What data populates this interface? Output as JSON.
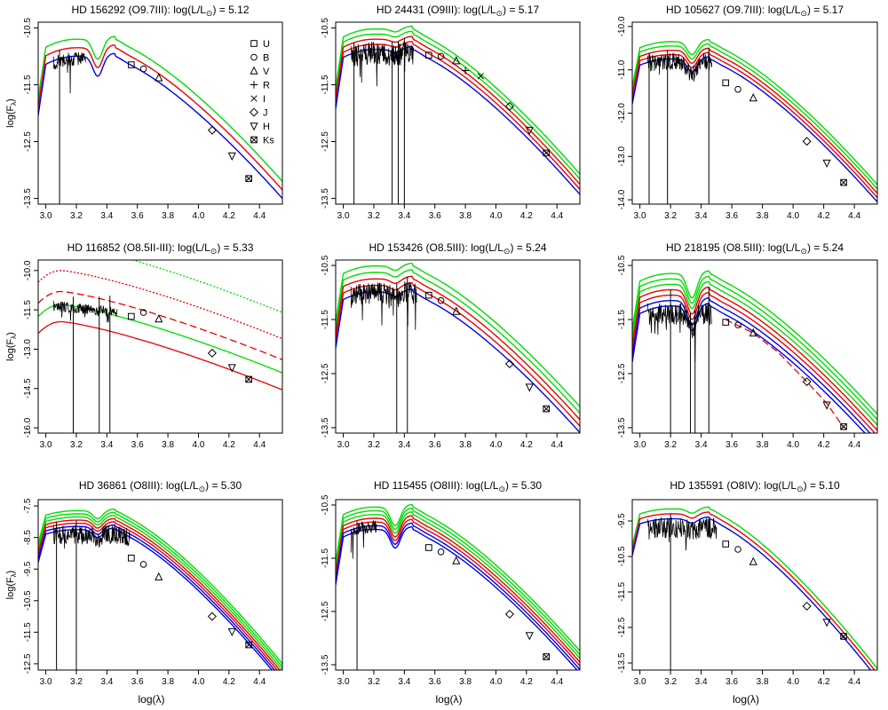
{
  "figure": {
    "x_axis_label": "log(λ)",
    "y_axis_label": "log(F",
    "y_axis_label_sub": "λ",
    "y_axis_label_close": ")",
    "legend": [
      "U",
      "B",
      "V",
      "R",
      "I",
      "J",
      "H",
      "Ks"
    ],
    "colors": {
      "hot": "#00dd00",
      "mid": "#ee0000",
      "cool": "#0000ee",
      "spectrum": "#000000",
      "frame": "#000000"
    }
  },
  "chart_data": [
    {
      "type": "line",
      "star": "HD 156292",
      "spectral_type": "(O9.7III)",
      "lum_text": "log(L/L",
      "lum_value": "5.12",
      "title": "HD 156292 (O9.7III): log(L/L☉) = 5.12",
      "xlim": [
        2.95,
        4.55
      ],
      "ylim": [
        -13.6,
        -10.4
      ],
      "xticks": [
        "3.0",
        "3.2",
        "3.4",
        "3.6",
        "3.8",
        "4.0",
        "4.2",
        "4.4"
      ],
      "yticks": [
        "-10.5",
        "-11.5",
        "-12.5",
        "-13.5"
      ],
      "model": {
        "peak": -10.85,
        "sep": 0.15,
        "bump": 0.35,
        "nlines": 3,
        "sed_end": -13.3
      },
      "spectrum": {
        "x": [
          3.05,
          3.26
        ],
        "level": -10.9,
        "noise": 0.12,
        "deep": [
          3.09
        ]
      },
      "photometry": [
        {
          "band": "U",
          "x": 3.56,
          "y": -11.15
        },
        {
          "band": "B",
          "x": 3.64,
          "y": -11.22
        },
        {
          "band": "V",
          "x": 3.74,
          "y": -11.38
        },
        {
          "band": "J",
          "x": 4.09,
          "y": -12.3
        },
        {
          "band": "H",
          "x": 4.22,
          "y": -12.75
        },
        {
          "band": "Ks",
          "x": 4.33,
          "y": -13.15
        }
      ],
      "show_legend": true,
      "ylabel": true,
      "xlabel": false
    },
    {
      "type": "line",
      "star": "HD 24431",
      "spectral_type": "(O9III)",
      "lum_text": "log(L/L",
      "lum_value": "5.17",
      "title": "HD 24431 (O9III): log(L/L☉) = 5.17",
      "xlim": [
        2.95,
        4.55
      ],
      "ylim": [
        -13.6,
        -10.4
      ],
      "xticks": [
        "3.0",
        "3.2",
        "3.4",
        "3.6",
        "3.8",
        "4.0",
        "4.2",
        "4.4"
      ],
      "yticks": [
        "-10.5",
        "-11.5",
        "-12.5",
        "-13.5"
      ],
      "model": {
        "peak": -10.7,
        "sep": 0.09,
        "bump": 0.05,
        "nlines": 5,
        "sed_end": -13.2
      },
      "spectrum": {
        "x": [
          3.05,
          3.46
        ],
        "level": -10.85,
        "noise": 0.2,
        "deep": [
          3.07,
          3.32,
          3.36,
          3.4
        ]
      },
      "photometry": [
        {
          "band": "U",
          "x": 3.56,
          "y": -10.98
        },
        {
          "band": "B",
          "x": 3.64,
          "y": -11.0
        },
        {
          "band": "V",
          "x": 3.74,
          "y": -11.08
        },
        {
          "band": "R",
          "x": 3.8,
          "y": -11.25
        },
        {
          "band": "I",
          "x": 3.9,
          "y": -11.35
        },
        {
          "band": "J",
          "x": 4.09,
          "y": -11.88
        },
        {
          "band": "H",
          "x": 4.22,
          "y": -12.3
        },
        {
          "band": "Ks",
          "x": 4.33,
          "y": -12.7
        }
      ],
      "show_legend": false,
      "ylabel": false,
      "xlabel": false
    },
    {
      "type": "line",
      "star": "HD 105627",
      "spectral_type": "(O9.7III)",
      "lum_text": "log(L/L",
      "lum_value": "5.17",
      "title": "HD 105627 (O9.7III): log(L/L☉) = 5.17",
      "xlim": [
        2.95,
        4.55
      ],
      "ylim": [
        -14.1,
        -9.9
      ],
      "xticks": [
        "3.0",
        "3.2",
        "3.4",
        "3.6",
        "3.8",
        "4.0",
        "4.2",
        "4.4"
      ],
      "yticks": [
        "-10.0",
        "-11.0",
        "-12.0",
        "-13.0",
        "-14.0"
      ],
      "model": {
        "peak": -10.55,
        "sep": 0.1,
        "bump": 0.3,
        "nlines": 5,
        "sed_end": -13.8
      },
      "spectrum": {
        "x": [
          3.05,
          3.47
        ],
        "level": -10.8,
        "noise": 0.2,
        "deep": [
          3.06,
          3.18,
          3.45
        ]
      },
      "photometry": [
        {
          "band": "U",
          "x": 3.56,
          "y": -11.3
        },
        {
          "band": "B",
          "x": 3.64,
          "y": -11.45
        },
        {
          "band": "V",
          "x": 3.74,
          "y": -11.65
        },
        {
          "band": "J",
          "x": 4.09,
          "y": -12.65
        },
        {
          "band": "H",
          "x": 4.22,
          "y": -13.15
        },
        {
          "band": "Ks",
          "x": 4.33,
          "y": -13.6
        }
      ],
      "show_legend": false,
      "ylabel": false,
      "xlabel": false
    },
    {
      "type": "line",
      "star": "HD 116852",
      "spectral_type": "(O8.5II-III)",
      "lum_text": "log(L/L",
      "lum_value": "5.33",
      "title": "HD 116852 (O8.5II-III): log(L/L☉) = 5.33",
      "xlim": [
        2.95,
        4.55
      ],
      "ylim": [
        -16.2,
        -9.6
      ],
      "xticks": [
        "3.0",
        "3.2",
        "3.4",
        "3.6",
        "3.8",
        "4.0",
        "4.2",
        "4.4"
      ],
      "yticks": [
        "-10.0",
        "-11.5",
        "-13.0",
        "-14.5",
        "-16.0"
      ],
      "model": {
        "custom": true
      },
      "spectrum": {
        "x": [
          3.05,
          3.47
        ],
        "level": -11.15,
        "noise": 0.2,
        "deep": [
          3.18,
          3.35,
          3.42
        ]
      },
      "photometry": [
        {
          "band": "U",
          "x": 3.56,
          "y": -11.75
        },
        {
          "band": "B",
          "x": 3.64,
          "y": -11.6
        },
        {
          "band": "V",
          "x": 3.74,
          "y": -11.85
        },
        {
          "band": "J",
          "x": 4.09,
          "y": -13.15
        },
        {
          "band": "H",
          "x": 4.22,
          "y": -13.7
        },
        {
          "band": "Ks",
          "x": 4.33,
          "y": -14.15
        }
      ],
      "show_legend": false,
      "ylabel": true,
      "xlabel": false
    },
    {
      "type": "line",
      "star": "HD 153426",
      "spectral_type": "(O8.5III)",
      "lum_text": "log(L/L",
      "lum_value": "5.24",
      "title": "HD 153426 (O8.5III): log(L/L☉) = 5.24",
      "xlim": [
        2.95,
        4.55
      ],
      "ylim": [
        -13.6,
        -10.4
      ],
      "xticks": [
        "3.0",
        "3.2",
        "3.4",
        "3.6",
        "3.8",
        "4.0",
        "4.2",
        "4.4"
      ],
      "yticks": [
        "-10.5",
        "-11.5",
        "-12.5",
        "-13.5"
      ],
      "model": {
        "peak": -10.75,
        "sep": 0.12,
        "bump": 0.08,
        "nlines": 5,
        "sed_end": -13.3
      },
      "spectrum": {
        "x": [
          3.05,
          3.48
        ],
        "level": -10.95,
        "noise": 0.2,
        "deep": [
          3.35,
          3.42
        ]
      },
      "photometry": [
        {
          "band": "U",
          "x": 3.56,
          "y": -11.05
        },
        {
          "band": "B",
          "x": 3.64,
          "y": -11.15
        },
        {
          "band": "V",
          "x": 3.74,
          "y": -11.35
        },
        {
          "band": "J",
          "x": 4.09,
          "y": -12.32
        },
        {
          "band": "H",
          "x": 4.22,
          "y": -12.75
        },
        {
          "band": "Ks",
          "x": 4.33,
          "y": -13.15
        }
      ],
      "show_legend": false,
      "ylabel": false,
      "xlabel": false
    },
    {
      "type": "line",
      "star": "HD 218195",
      "spectral_type": "(O8.5III)",
      "lum_text": "log(L/L",
      "lum_value": "5.24",
      "title": "HD 218195 (O8.5III): log(L/L☉) = 5.24",
      "xlim": [
        2.95,
        4.55
      ],
      "ylim": [
        -13.6,
        -10.4
      ],
      "xticks": [
        "3.0",
        "3.2",
        "3.4",
        "3.6",
        "3.8",
        "4.0",
        "4.2",
        "4.4"
      ],
      "yticks": [
        "-10.5",
        "-11.5",
        "-12.5",
        "-13.5"
      ],
      "model": {
        "peak": -10.95,
        "sep": 0.1,
        "bump": 0.45,
        "nlines": 7,
        "sed_end": -13.5
      },
      "spectrum": {
        "x": [
          3.05,
          3.47
        ],
        "level": -11.4,
        "noise": 0.2,
        "deep": [
          3.2,
          3.33,
          3.36,
          3.45
        ]
      },
      "dashed": [
        [
          3.56,
          -11.5
        ],
        [
          3.74,
          -11.75
        ],
        [
          3.9,
          -12.1
        ],
        [
          4.09,
          -12.65
        ],
        [
          4.22,
          -13.05
        ],
        [
          4.33,
          -13.5
        ]
      ],
      "photometry": [
        {
          "band": "U",
          "x": 3.56,
          "y": -11.55
        },
        {
          "band": "B",
          "x": 3.64,
          "y": -11.6
        },
        {
          "band": "V",
          "x": 3.74,
          "y": -11.75
        },
        {
          "band": "J",
          "x": 4.09,
          "y": -12.65
        },
        {
          "band": "H",
          "x": 4.22,
          "y": -13.08
        },
        {
          "band": "Ks",
          "x": 4.33,
          "y": -13.48
        }
      ],
      "show_legend": false,
      "ylabel": false,
      "xlabel": false
    },
    {
      "type": "line",
      "star": "HD 36861",
      "spectral_type": "(O8III)",
      "lum_text": "log(L/L",
      "lum_value": "5.30",
      "title": "HD 36861 (O8III): log(L/L☉) = 5.30",
      "xlim": [
        2.95,
        4.55
      ],
      "ylim": [
        -12.7,
        -7.3
      ],
      "xticks": [
        "3.0",
        "3.2",
        "3.4",
        "3.6",
        "3.8",
        "4.0",
        "4.2",
        "4.4"
      ],
      "yticks": [
        "-7.5",
        "-8.5",
        "-9.5",
        "-10.5",
        "-11.5",
        "-12.5"
      ],
      "model": {
        "peak": -7.95,
        "sep": 0.1,
        "bump": 0.25,
        "nlines": 7,
        "sed_end": -12.75
      },
      "spectrum": {
        "x": [
          3.05,
          3.55
        ],
        "level": -8.3,
        "noise": 0.3,
        "deep": [
          3.07,
          3.2
        ]
      },
      "photometry": [
        {
          "band": "U",
          "x": 3.56,
          "y": -9.15
        },
        {
          "band": "B",
          "x": 3.64,
          "y": -9.35
        },
        {
          "band": "V",
          "x": 3.74,
          "y": -9.75
        },
        {
          "band": "J",
          "x": 4.09,
          "y": -11.0
        },
        {
          "band": "H",
          "x": 4.22,
          "y": -11.48
        },
        {
          "band": "Ks",
          "x": 4.33,
          "y": -11.9
        }
      ],
      "show_legend": false,
      "ylabel": true,
      "xlabel": true
    },
    {
      "type": "line",
      "star": "HD 115455",
      "spectral_type": "(O8III)",
      "lum_text": "log(L/L",
      "lum_value": "5.30",
      "title": "HD 115455 (O8III): log(L/L☉) = 5.30",
      "xlim": [
        2.95,
        4.55
      ],
      "ylim": [
        -13.6,
        -10.4
      ],
      "xticks": [
        "3.0",
        "3.2",
        "3.4",
        "3.6",
        "3.8",
        "4.0",
        "4.2",
        "4.4"
      ],
      "yticks": [
        "-10.5",
        "-11.5",
        "-12.5",
        "-13.5"
      ],
      "model": {
        "peak": -10.75,
        "sep": 0.07,
        "bump": 0.35,
        "nlines": 7,
        "sed_end": -13.4
      },
      "spectrum": {
        "x": [
          3.05,
          3.22
        ],
        "level": -10.95,
        "noise": 0.12,
        "deep": [
          3.09
        ]
      },
      "photometry": [
        {
          "band": "U",
          "x": 3.56,
          "y": -11.3
        },
        {
          "band": "B",
          "x": 3.64,
          "y": -11.38
        },
        {
          "band": "V",
          "x": 3.74,
          "y": -11.55
        },
        {
          "band": "J",
          "x": 4.09,
          "y": -12.55
        },
        {
          "band": "H",
          "x": 4.22,
          "y": -12.95
        },
        {
          "band": "Ks",
          "x": 4.33,
          "y": -13.35
        }
      ],
      "show_legend": false,
      "ylabel": false,
      "xlabel": true
    },
    {
      "type": "line",
      "star": "HD 135591",
      "spectral_type": "(O8IV)",
      "lum_text": "log(L/L",
      "lum_value": "5.10",
      "title": "HD 135591 (O8IV): log(L/L☉) = 5.10",
      "xlim": [
        2.95,
        4.55
      ],
      "ylim": [
        -13.7,
        -8.9
      ],
      "xticks": [
        "3.0",
        "3.2",
        "3.4",
        "3.6",
        "3.8",
        "4.0",
        "4.2",
        "4.4"
      ],
      "yticks": [
        "-9.5",
        "-10.5",
        "-11.5",
        "-12.5",
        "-13.5"
      ],
      "model": {
        "peak": -9.3,
        "sep": 0.14,
        "bump": 0.12,
        "nlines": 3,
        "sed_end": -13.75
      },
      "spectrum": {
        "x": [
          3.05,
          3.5
        ],
        "level": -9.6,
        "noise": 0.3,
        "deep": [
          3.2
        ]
      },
      "photometry": [
        {
          "band": "U",
          "x": 3.56,
          "y": -10.15
        },
        {
          "band": "B",
          "x": 3.64,
          "y": -10.3
        },
        {
          "band": "V",
          "x": 3.74,
          "y": -10.65
        },
        {
          "band": "J",
          "x": 4.09,
          "y": -11.9
        },
        {
          "band": "H",
          "x": 4.22,
          "y": -12.35
        },
        {
          "band": "Ks",
          "x": 4.33,
          "y": -12.75
        }
      ],
      "show_legend": false,
      "ylabel": false,
      "xlabel": true
    }
  ]
}
